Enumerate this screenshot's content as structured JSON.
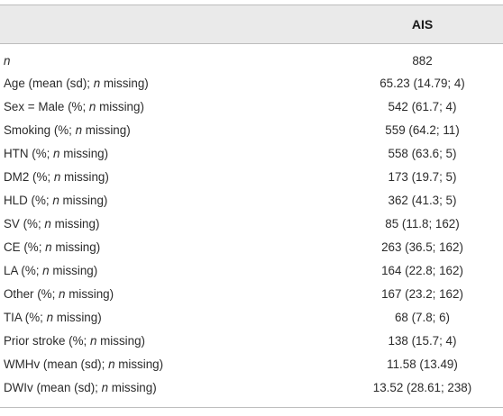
{
  "header": {
    "col1": "",
    "col2": "AIS"
  },
  "rows": [
    {
      "pre": "",
      "italic": "n",
      "post": "",
      "value": "882"
    },
    {
      "pre": "Age (mean (sd); ",
      "italic": "n",
      "post": " missing)",
      "value": "65.23 (14.79; 4)"
    },
    {
      "pre": "Sex = Male (%; ",
      "italic": "n",
      "post": " missing)",
      "value": "542 (61.7; 4)"
    },
    {
      "pre": "Smoking (%; ",
      "italic": "n",
      "post": " missing)",
      "value": "559 (64.2; 11)"
    },
    {
      "pre": "HTN (%; ",
      "italic": "n",
      "post": " missing)",
      "value": "558 (63.6; 5)"
    },
    {
      "pre": "DM2 (%; ",
      "italic": "n",
      "post": " missing)",
      "value": "173 (19.7; 5)"
    },
    {
      "pre": "HLD (%; ",
      "italic": "n",
      "post": " missing)",
      "value": "362 (41.3; 5)"
    },
    {
      "pre": "SV (%; ",
      "italic": "n",
      "post": " missing)",
      "value": "85 (11.8; 162)"
    },
    {
      "pre": "CE (%; ",
      "italic": "n",
      "post": " missing)",
      "value": "263 (36.5; 162)"
    },
    {
      "pre": "LA (%; ",
      "italic": "n",
      "post": " missing)",
      "value": "164 (22.8; 162)"
    },
    {
      "pre": "Other (%; ",
      "italic": "n",
      "post": " missing)",
      "value": "167 (23.2; 162)"
    },
    {
      "pre": "TIA (%; ",
      "italic": "n",
      "post": " missing)",
      "value": "68 (7.8; 6)"
    },
    {
      "pre": "Prior stroke (%; ",
      "italic": "n",
      "post": " missing)",
      "value": "138 (15.7; 4)"
    },
    {
      "pre": "WMHv (mean (sd); ",
      "italic": "n",
      "post": " missing)",
      "value": "11.58 (13.49)"
    },
    {
      "pre": "DWIv (mean (sd); ",
      "italic": "n",
      "post": " missing)",
      "value": "13.52 (28.61; 238)"
    }
  ]
}
